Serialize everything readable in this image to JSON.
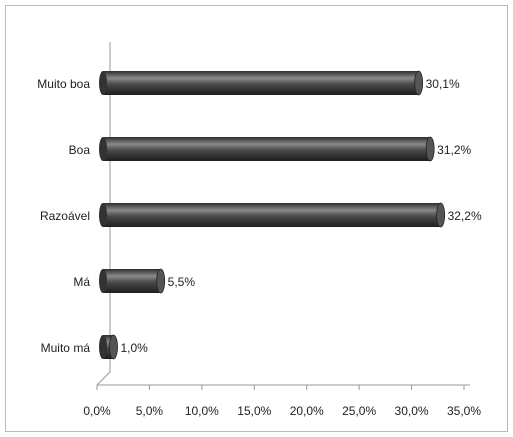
{
  "chart_data": {
    "type": "bar",
    "orientation": "horizontal",
    "categories": [
      "Muito boa",
      "Boa",
      "Razoável",
      "Má",
      "Muito má"
    ],
    "values": [
      30.1,
      31.2,
      32.2,
      5.5,
      1.0
    ],
    "value_labels": [
      "30,1%",
      "31,2%",
      "32,2%",
      "5,5%",
      "1,0%"
    ],
    "color": "#4a4a4a",
    "xlim": [
      0,
      35
    ],
    "xticks": [
      {
        "value": 0,
        "label": "0,0%"
      },
      {
        "value": 5,
        "label": "5,0%"
      },
      {
        "value": 10,
        "label": "10,0%"
      },
      {
        "value": 15,
        "label": "15,0%"
      },
      {
        "value": 20,
        "label": "20,0%"
      },
      {
        "value": 25,
        "label": "25,0%"
      },
      {
        "value": 30,
        "label": "30,0%"
      },
      {
        "value": 35,
        "label": "35,0%"
      }
    ],
    "grid": false
  }
}
